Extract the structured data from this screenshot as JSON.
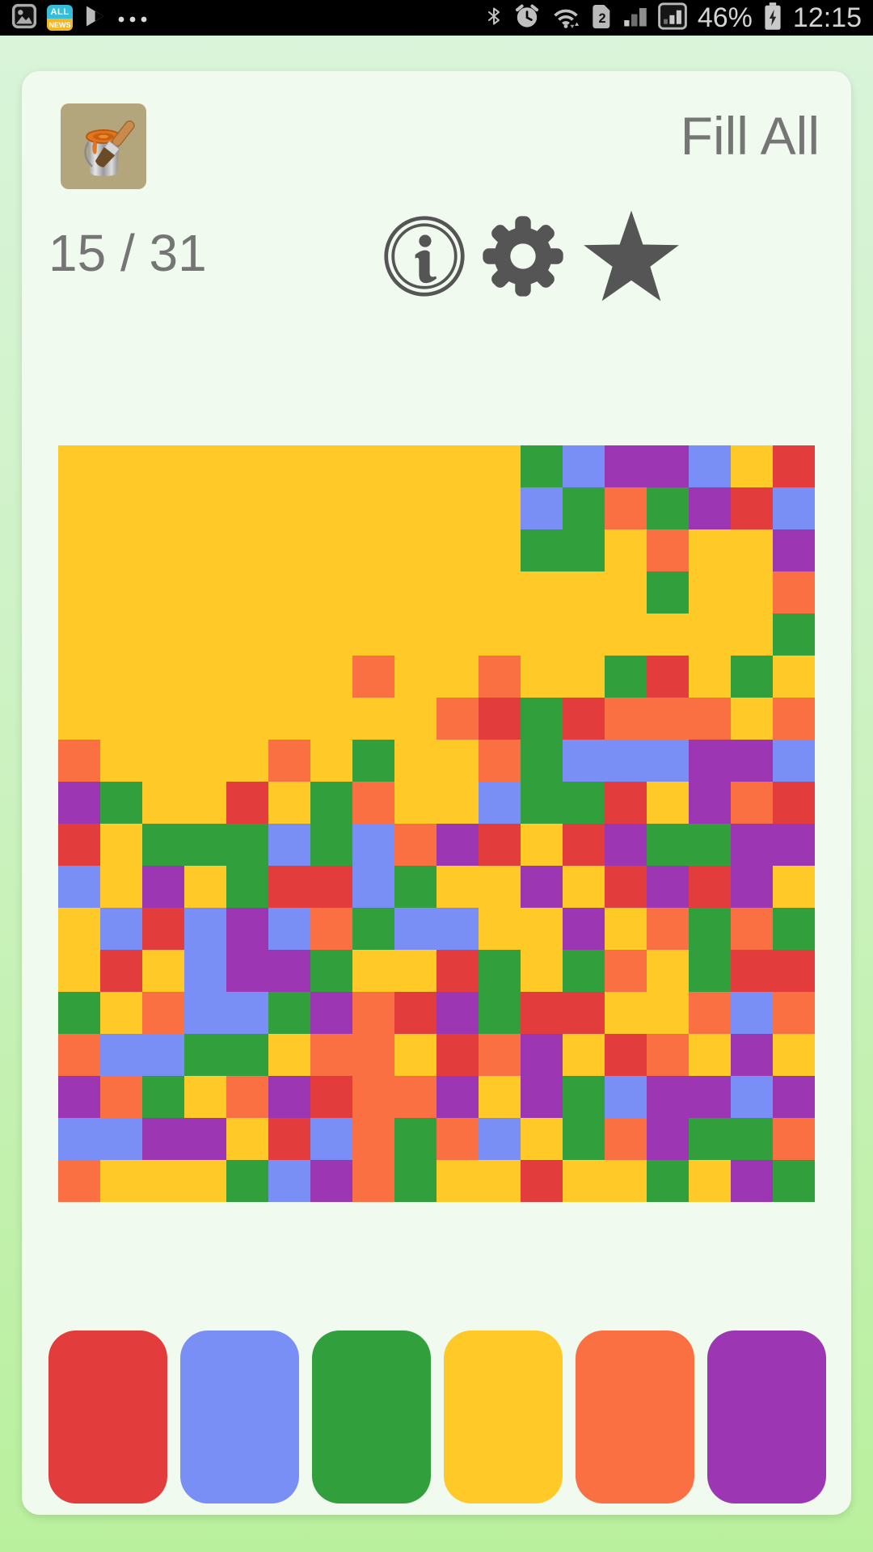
{
  "status_bar": {
    "time": "12:15",
    "battery_percent": "46%",
    "sim_badge": "2",
    "news_icon_top": "ALL",
    "news_icon_bottom": "NEWS",
    "left_icons": [
      "gallery-icon",
      "all-news-icon",
      "play-store-icon",
      "overflow-dots-icon"
    ],
    "right_icons": [
      "bluetooth-icon",
      "alarm-icon",
      "wifi-icon",
      "sim-card-icon",
      "signal-bars-icon",
      "signal-bars-boxed-icon",
      "battery-icon"
    ]
  },
  "header": {
    "title": "Fill All",
    "progress": "15 / 31",
    "action_icons": [
      "info-icon",
      "settings-gear-icon",
      "star-icon"
    ]
  },
  "board": {
    "rows": 18,
    "cols": 18,
    "colors": {
      "Y": "#FFC928",
      "G": "#31A03C",
      "B": "#7A8FF5",
      "R": "#E23C3C",
      "O": "#FB7043",
      "P": "#9C36B2"
    },
    "cells": [
      "YYYYYYYYYYYGBPPBYR",
      "YYYYYYYYYYYBGOGPRB",
      "YYYYYYYYYYYGGYOYYP",
      "YYYYYYYYYYYYYYGYYO",
      "YYYYYYYYYYYYYYYYYG",
      "YYYYYYYOYYOYYGRYGY",
      "YYYYYYYYYORGROOOYO",
      "OYYYYOYGYYOGBBBPPB",
      "PGYYRYGOYYBGGRYPOR",
      "RYGGGBGBOPRYRPGGPP",
      "BYPYGRRBGYYPYRPRPY",
      "YBRBPBOGBBYYPYOGOG",
      "YRYBPPGYYRGYGOYGRR",
      "GYOBBGPORPGRRYYOBO",
      "OBBGGYOOYROPYROYPY",
      "POGYOPROOPYPGBPPBP",
      "BBPPYRBOGOBYGOPGGO",
      "OYYYGBPOGYYRYYGYPG"
    ]
  },
  "palette": {
    "swatches": [
      {
        "name": "red",
        "hex": "#E23C3C"
      },
      {
        "name": "blue",
        "hex": "#7A8FF5"
      },
      {
        "name": "green",
        "hex": "#31A03C"
      },
      {
        "name": "yellow",
        "hex": "#FFC928"
      },
      {
        "name": "orange",
        "hex": "#FB7043"
      },
      {
        "name": "purple",
        "hex": "#9C36B2"
      }
    ]
  },
  "theme": {
    "page_gradient_top": "#DAF4DB",
    "page_gradient_bottom": "#B9F09D",
    "card_bg": "#F0FAEF",
    "status_bar_bg": "#000000",
    "header_text": "#757575",
    "header_icon_gray": "#555555",
    "status_icon_gray": "#C0C0C0"
  }
}
